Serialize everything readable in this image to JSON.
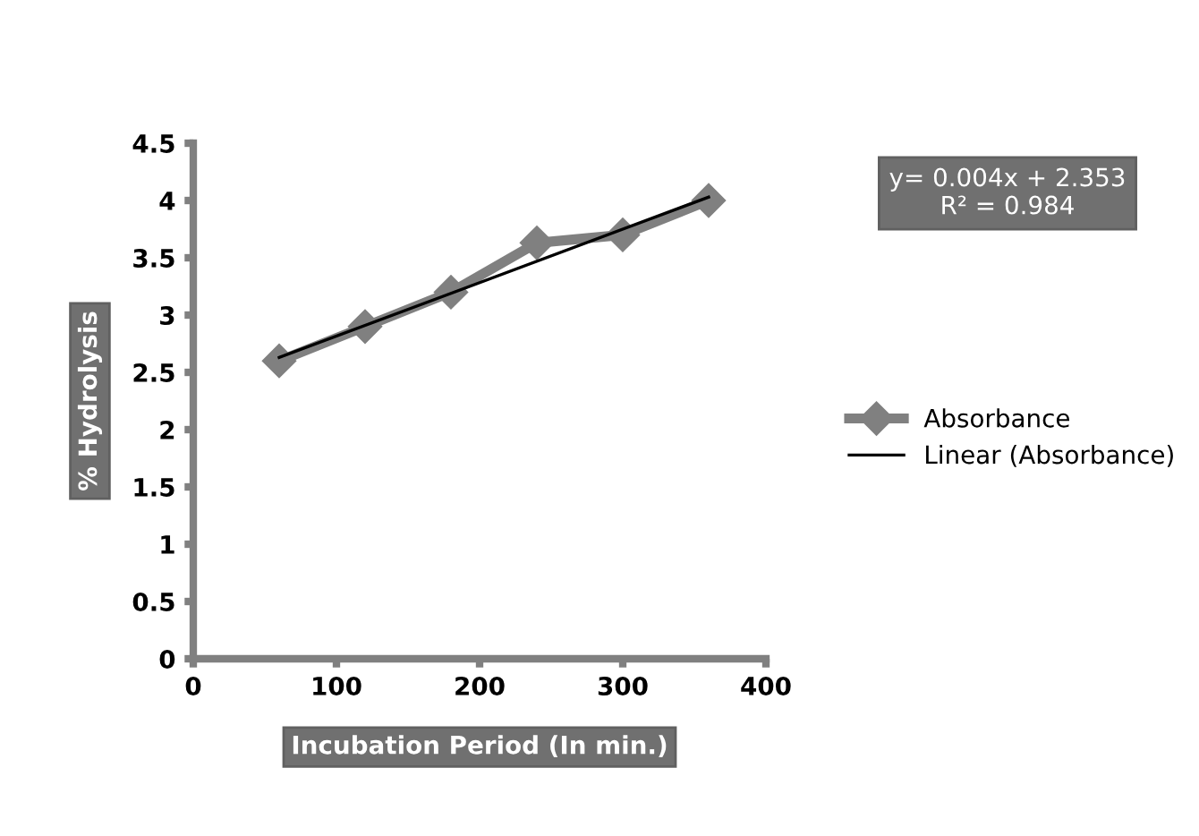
{
  "chart_data": {
    "type": "line",
    "xlabel": "Incubation Period (In min.)",
    "ylabel": "% Hydrolysis",
    "x": [
      60,
      120,
      180,
      240,
      300,
      360
    ],
    "series": [
      {
        "name": "Absorbance",
        "color": "#808080",
        "values": [
          2.6,
          2.9,
          3.2,
          3.63,
          3.7,
          4.0
        ],
        "marker": "diamond"
      },
      {
        "name": "Linear (Absorbance)",
        "color": "#000000",
        "type": "line",
        "x": [
          60,
          360
        ],
        "values": [
          2.63,
          4.03
        ],
        "marker": "none"
      }
    ],
    "annotations": [
      "y= 0.004x + 2.353\nR² = 0.984"
    ],
    "xlim": [
      0,
      400
    ],
    "xticks": [
      0,
      100,
      200,
      300,
      400
    ],
    "ylim": [
      0,
      4.5
    ],
    "yticks": [
      0,
      0.5,
      1,
      1.5,
      2,
      2.5,
      3,
      3.5,
      4,
      4.5
    ],
    "grid": false,
    "legend": "right"
  }
}
